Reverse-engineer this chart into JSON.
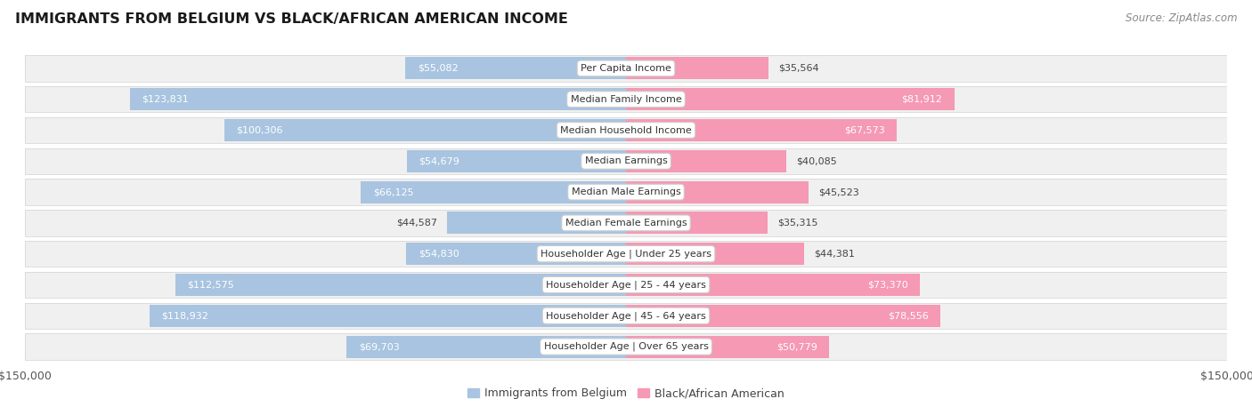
{
  "title": "IMMIGRANTS FROM BELGIUM VS BLACK/AFRICAN AMERICAN INCOME",
  "source": "Source: ZipAtlas.com",
  "categories": [
    "Per Capita Income",
    "Median Family Income",
    "Median Household Income",
    "Median Earnings",
    "Median Male Earnings",
    "Median Female Earnings",
    "Householder Age | Under 25 years",
    "Householder Age | 25 - 44 years",
    "Householder Age | 45 - 64 years",
    "Householder Age | Over 65 years"
  ],
  "belgium_values": [
    55082,
    123831,
    100306,
    54679,
    66125,
    44587,
    54830,
    112575,
    118932,
    69703
  ],
  "black_values": [
    35564,
    81912,
    67573,
    40085,
    45523,
    35315,
    44381,
    73370,
    78556,
    50779
  ],
  "belgium_color": "#a8c4e0",
  "black_color": "#f599b4",
  "belgium_label": "Immigrants from Belgium",
  "black_label": "Black/African American",
  "axis_max": 150000,
  "background_color": "#ffffff",
  "row_bg": "#f0f0f0",
  "row_border": "#d8d8d8",
  "gap_color": "#ffffff"
}
